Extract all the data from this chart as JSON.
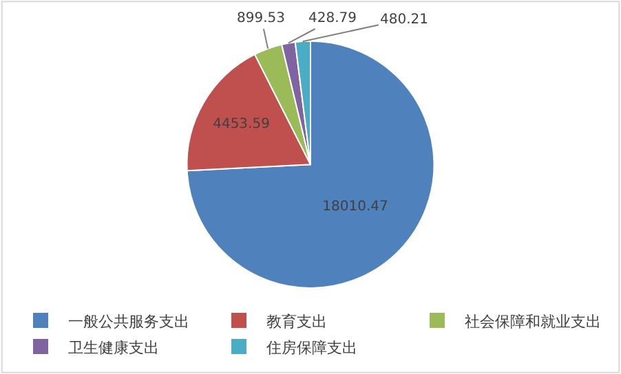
{
  "chart_data": {
    "type": "pie",
    "categories": [
      "一般公共服务支出",
      "教育支出",
      "社会保障和就业支出",
      "卫生健康支出",
      "住房保障支出"
    ],
    "values": [
      18010.47,
      4453.59,
      899.53,
      428.79,
      480.21
    ],
    "colors": [
      "#4f81bd",
      "#c0504d",
      "#9bbb59",
      "#8064a2",
      "#4bacc6"
    ],
    "data_labels": true,
    "legend": "bottom"
  }
}
